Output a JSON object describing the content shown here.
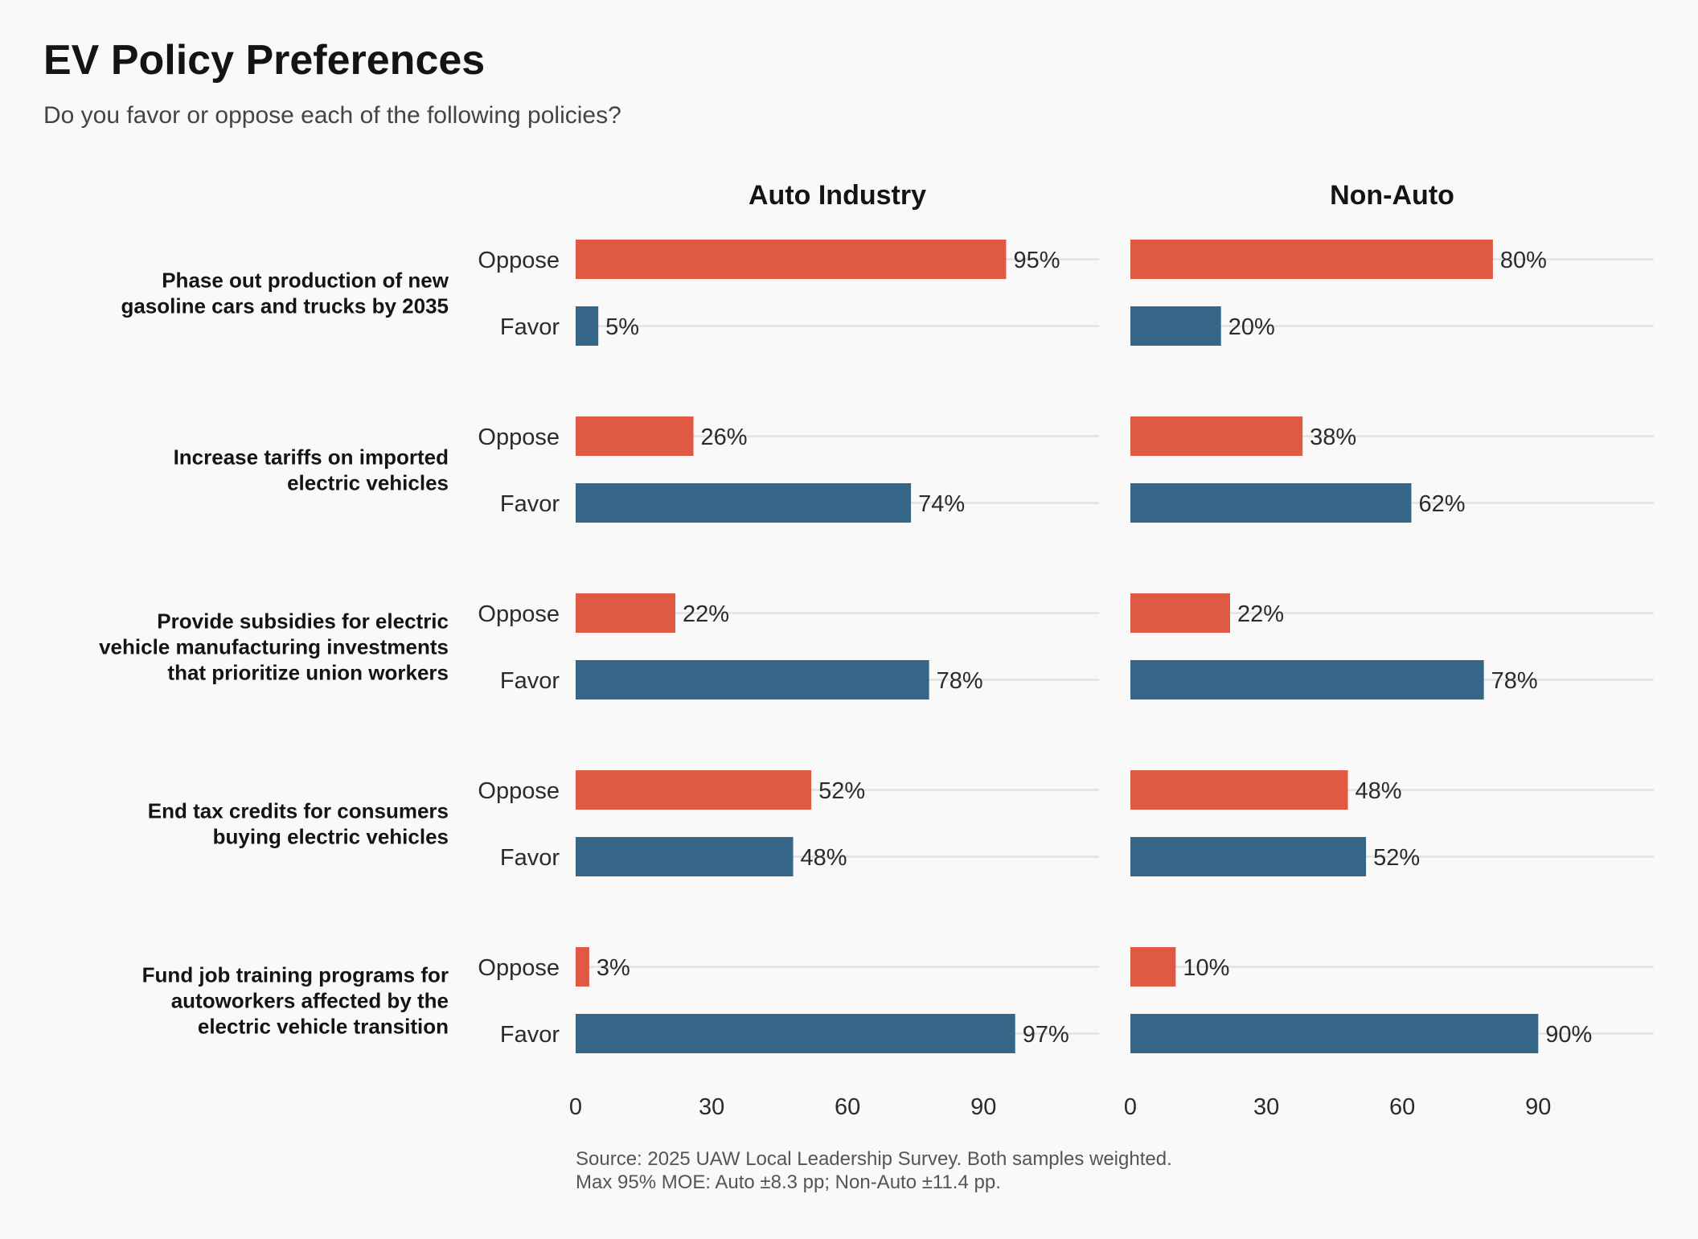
{
  "chart_data": {
    "type": "bar",
    "orientation": "horizontal",
    "title": "EV Policy Preferences",
    "subtitle": "Do you favor or oppose each of the following policies?",
    "caption": [
      "Source: 2025 UAW Local Leadership Survey. Both samples weighted.",
      "Max 95% MOE: Auto ±8.3 pp; Non-Auto ±11.4 pp."
    ],
    "xlim": [
      0,
      115.5
    ],
    "xticks": [
      0,
      30,
      60,
      90
    ],
    "xtick_labels": [
      "0",
      "30",
      "60",
      "90"
    ],
    "value_suffix": "%",
    "grid": "horizontal at each bar",
    "responses": [
      {
        "key": "oppose",
        "label": "Oppose",
        "color": "#e05a43"
      },
      {
        "key": "favor",
        "label": "Favor",
        "color": "#366789"
      }
    ],
    "categories": [
      {
        "lines": [
          "Phase out production of new",
          "gasoline cars and trucks by 2035"
        ]
      },
      {
        "lines": [
          "Increase tariffs on imported",
          "electric vehicles"
        ]
      },
      {
        "lines": [
          "Provide subsidies for electric",
          "vehicle manufacturing investments",
          "that prioritize union workers"
        ]
      },
      {
        "lines": [
          "End tax credits for consumers",
          "buying electric vehicles"
        ]
      },
      {
        "lines": [
          "Fund job training programs for",
          "autoworkers affected by the",
          "electric vehicle transition"
        ]
      }
    ],
    "panels": [
      {
        "name": "Auto Industry",
        "series": [
          {
            "name": "Oppose",
            "values": [
              95,
              26,
              22,
              52,
              3
            ]
          },
          {
            "name": "Favor",
            "values": [
              5,
              74,
              78,
              48,
              97
            ]
          }
        ]
      },
      {
        "name": "Non-Auto",
        "series": [
          {
            "name": "Oppose",
            "values": [
              80,
              38,
              22,
              48,
              10
            ]
          },
          {
            "name": "Favor",
            "values": [
              20,
              62,
              78,
              52,
              90
            ]
          }
        ]
      }
    ]
  }
}
